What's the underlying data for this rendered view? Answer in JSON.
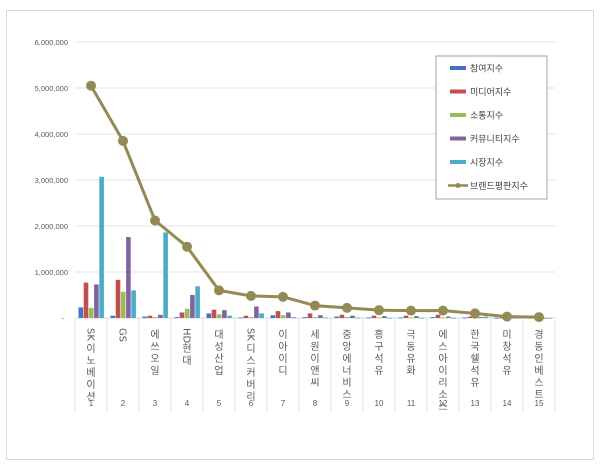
{
  "chart_data": {
    "type": "bar",
    "title": "",
    "xlabel": "",
    "ylabel": "",
    "ylim": [
      0,
      6000000
    ],
    "yticks": [
      "-",
      "1,000,000",
      "2,000,000",
      "3,000,000",
      "4,000,000",
      "5,000,000",
      "6,000,000"
    ],
    "grid": true,
    "legend_position": "upper-right",
    "rank_labels": [
      "1",
      "2",
      "3",
      "4",
      "5",
      "6",
      "7",
      "8",
      "9",
      "10",
      "11",
      "12",
      "13",
      "14",
      "15"
    ],
    "categories": [
      "SK이노베이션",
      "GS",
      "에쓰오일",
      "HD현대",
      "대성산업",
      "SK디스커버리",
      "이아이디",
      "세원이앤씨",
      "중앙에너비스",
      "흥구석유",
      "극동유화",
      "에스아이리소스",
      "한국쉘석유",
      "미창석유",
      "경동인베스트"
    ],
    "series": [
      {
        "name": "참여지수",
        "type": "bar",
        "color": "#4472c4",
        "values": [
          230000,
          50000,
          30000,
          20000,
          100000,
          10000,
          60000,
          20000,
          30000,
          10000,
          10000,
          20000,
          10000,
          5000,
          5000
        ]
      },
      {
        "name": "미디어지수",
        "type": "bar",
        "color": "#c0504d",
        "values": [
          770000,
          830000,
          50000,
          120000,
          180000,
          50000,
          150000,
          100000,
          70000,
          50000,
          50000,
          70000,
          30000,
          10000,
          5000
        ]
      },
      {
        "name": "소통지수",
        "type": "bar",
        "color": "#9bbb59",
        "values": [
          220000,
          570000,
          20000,
          200000,
          80000,
          20000,
          60000,
          20000,
          20000,
          10000,
          10000,
          10000,
          5000,
          5000,
          5000
        ]
      },
      {
        "name": "커뮤니티지수",
        "type": "bar",
        "color": "#8064a2",
        "values": [
          730000,
          1760000,
          70000,
          500000,
          170000,
          250000,
          120000,
          60000,
          50000,
          40000,
          40000,
          30000,
          20000,
          10000,
          5000
        ]
      },
      {
        "name": "시장지수",
        "type": "bar",
        "color": "#4bacc6",
        "values": [
          3070000,
          600000,
          1860000,
          690000,
          50000,
          100000,
          20000,
          10000,
          10000,
          5000,
          5000,
          5000,
          30000,
          5000,
          5000
        ]
      },
      {
        "name": "브랜드평판지수",
        "type": "line",
        "color": "#948a54",
        "values": [
          5050000,
          3850000,
          2120000,
          1550000,
          600000,
          480000,
          460000,
          270000,
          220000,
          170000,
          160000,
          160000,
          100000,
          30000,
          20000
        ]
      }
    ]
  }
}
